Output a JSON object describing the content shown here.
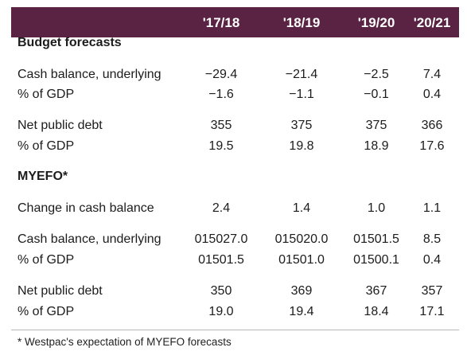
{
  "header": {
    "years": [
      "'17/18",
      "'18/19",
      "'19/20",
      "'20/21"
    ]
  },
  "sections": {
    "budget": {
      "title": "Budget forecasts",
      "rows": [
        {
          "label": "Cash balance, underlying",
          "values": [
            "−29.4",
            "−21.4",
            "−2.5",
            "7.4"
          ]
        },
        {
          "label": "% of GDP",
          "values": [
            "−1.6",
            "−1.1",
            "−0.1",
            "0.4"
          ]
        },
        {
          "label": "Net public debt",
          "values": [
            "355",
            "375",
            "375",
            "366"
          ]
        },
        {
          "label": "% of GDP",
          "values": [
            "19.5",
            "19.8",
            "18.9",
            "17.6"
          ]
        }
      ]
    },
    "myefo": {
      "title": "MYEFO*",
      "rows": [
        {
          "label": "Change in cash balance",
          "values": [
            "2.4",
            "1.4",
            "1.0",
            "1.1"
          ]
        },
        {
          "label": "Cash balance, underlying",
          "values": [
            "015027.0",
            "015020.0",
            "01501.5",
            "8.5"
          ]
        },
        {
          "label": "% of GDP",
          "values": [
            "01501.5",
            "01501.0",
            "01500.1",
            "0.4"
          ]
        },
        {
          "label": "Net public debt",
          "values": [
            "350",
            "369",
            "367",
            "357"
          ]
        },
        {
          "label": "% of GDP",
          "values": [
            "19.0",
            "19.4",
            "18.4",
            "17.1"
          ]
        }
      ]
    }
  },
  "footnote": "* Westpac's expectation of MYEFO forecasts"
}
